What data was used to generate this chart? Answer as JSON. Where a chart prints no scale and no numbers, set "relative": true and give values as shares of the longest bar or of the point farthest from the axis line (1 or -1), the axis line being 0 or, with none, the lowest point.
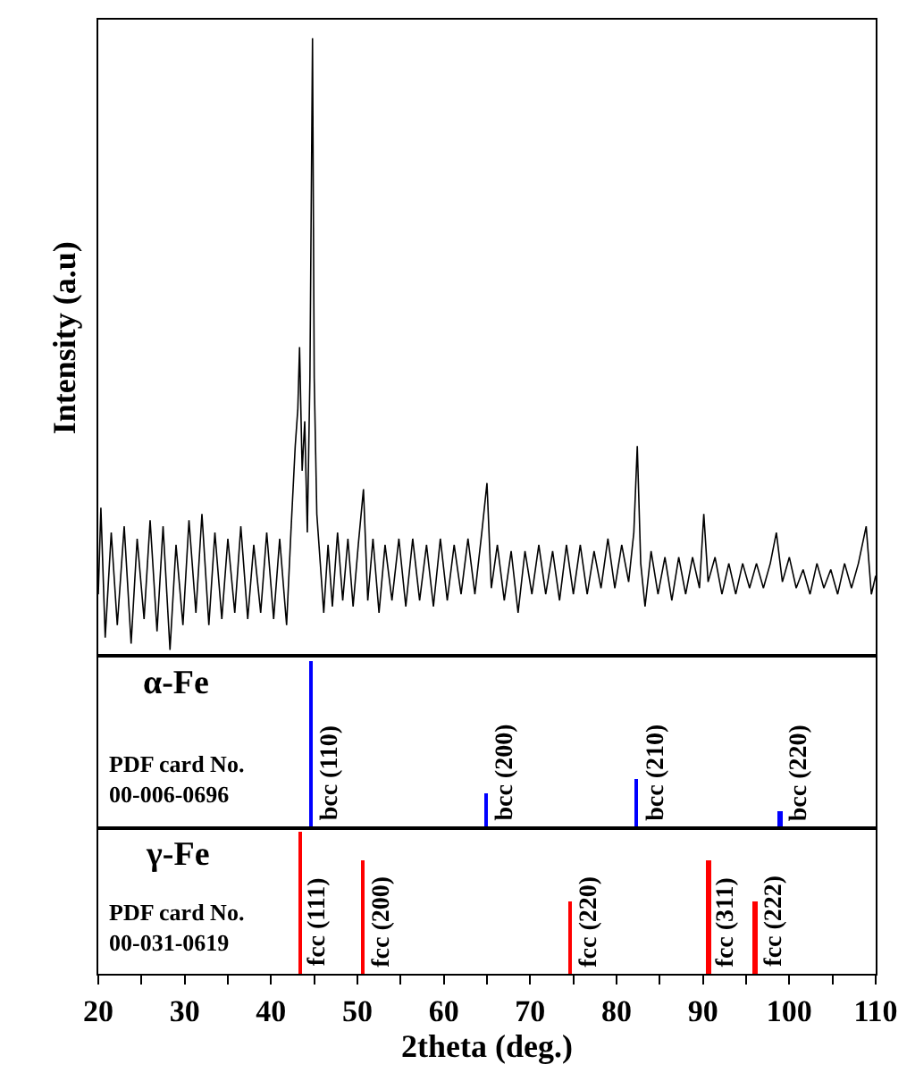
{
  "chart_data": [
    {
      "type": "line",
      "relative": true,
      "ylabel": "Intensity (a.u)",
      "xlim": [
        20,
        110
      ],
      "tick_labels": false,
      "grid": false,
      "marker": "none",
      "line_style": "solid",
      "series": [
        {
          "color": "#000000",
          "x": [
            20,
            20.3,
            20.8,
            21.5,
            22.2,
            23,
            23.8,
            24.5,
            25.3,
            26,
            26.8,
            27.5,
            28.3,
            29,
            29.8,
            30.5,
            31.3,
            32,
            32.8,
            33.5,
            34.3,
            35,
            35.8,
            36.5,
            37.3,
            38,
            38.8,
            39.5,
            40.3,
            41,
            41.8,
            42.3,
            42.8,
            43.1,
            43.3,
            43.6,
            43.9,
            44.2,
            44.5,
            44.8,
            45.0,
            45.3,
            45.7,
            46.1,
            46.6,
            47.1,
            47.7,
            48.3,
            48.9,
            49.5,
            50.1,
            50.7,
            51.2,
            51.8,
            52.5,
            53.2,
            54,
            54.8,
            55.6,
            56.4,
            57.2,
            58,
            58.8,
            59.6,
            60.4,
            61.2,
            62,
            62.8,
            63.6,
            64.4,
            65.0,
            65.5,
            66.2,
            67,
            67.8,
            68.6,
            69.4,
            70.2,
            71,
            71.8,
            72.6,
            73.4,
            74.2,
            75,
            75.8,
            76.6,
            77.4,
            78.2,
            79,
            79.8,
            80.6,
            81.4,
            82.0,
            82.4,
            82.8,
            83.3,
            84,
            84.8,
            85.6,
            86.4,
            87.2,
            88,
            88.8,
            89.6,
            90.1,
            90.6,
            91.4,
            92.2,
            93,
            93.8,
            94.6,
            95.4,
            96.2,
            97,
            97.8,
            98.5,
            99.2,
            100,
            100.8,
            101.6,
            102.4,
            103.2,
            104,
            104.8,
            105.6,
            106.4,
            107.2,
            108,
            108.9,
            109.5,
            110
          ],
          "values": [
            0.1,
            0.24,
            0.03,
            0.2,
            0.05,
            0.21,
            0.02,
            0.19,
            0.06,
            0.22,
            0.04,
            0.21,
            0.01,
            0.18,
            0.05,
            0.22,
            0.07,
            0.23,
            0.05,
            0.2,
            0.06,
            0.19,
            0.07,
            0.21,
            0.06,
            0.18,
            0.07,
            0.2,
            0.06,
            0.19,
            0.05,
            0.2,
            0.34,
            0.4,
            0.5,
            0.3,
            0.38,
            0.2,
            0.45,
            1.0,
            0.45,
            0.23,
            0.15,
            0.07,
            0.18,
            0.08,
            0.2,
            0.09,
            0.19,
            0.08,
            0.18,
            0.27,
            0.09,
            0.19,
            0.07,
            0.18,
            0.09,
            0.19,
            0.08,
            0.19,
            0.09,
            0.18,
            0.08,
            0.19,
            0.09,
            0.18,
            0.1,
            0.19,
            0.1,
            0.2,
            0.28,
            0.11,
            0.18,
            0.09,
            0.17,
            0.07,
            0.17,
            0.1,
            0.18,
            0.1,
            0.17,
            0.09,
            0.18,
            0.1,
            0.18,
            0.1,
            0.17,
            0.11,
            0.19,
            0.11,
            0.18,
            0.12,
            0.2,
            0.34,
            0.15,
            0.08,
            0.17,
            0.1,
            0.16,
            0.09,
            0.16,
            0.1,
            0.16,
            0.11,
            0.23,
            0.12,
            0.16,
            0.1,
            0.15,
            0.1,
            0.15,
            0.11,
            0.15,
            0.11,
            0.15,
            0.2,
            0.12,
            0.16,
            0.11,
            0.14,
            0.1,
            0.15,
            0.11,
            0.14,
            0.1,
            0.15,
            0.11,
            0.15,
            0.21,
            0.1,
            0.13
          ]
        }
      ]
    },
    {
      "type": "bar",
      "relative": true,
      "xlim": [
        20,
        110
      ],
      "tick_labels": false,
      "grid": false,
      "annotations": [
        "α-Fe",
        "PDF card No.\n00-006-0696",
        {
          "text": "bcc (110)",
          "x": 44.7,
          "y": 0
        },
        {
          "text": "bcc (200)",
          "x": 65.0,
          "y": 0
        },
        {
          "text": "bcc (210)",
          "x": 82.4,
          "y": 0
        },
        {
          "text": "bcc (220)",
          "x": 99.0,
          "y": 0
        }
      ],
      "series": [
        {
          "color": "#0000ff",
          "x": [
            44.7,
            65.0,
            82.4,
            99.0
          ],
          "values": [
            1,
            0.2,
            0.29,
            0.1
          ]
        }
      ]
    },
    {
      "type": "bar",
      "relative": true,
      "xlim": [
        20,
        110
      ],
      "tick_labels": "x",
      "xlabel": "2theta (deg.)",
      "grid": false,
      "xticks": [
        20,
        {
          "value": 25,
          "label": null
        },
        30,
        {
          "value": 35,
          "label": null
        },
        40,
        {
          "value": 45,
          "label": null
        },
        50,
        {
          "value": 55,
          "label": null
        },
        60,
        {
          "value": 65,
          "label": null
        },
        70,
        {
          "value": 75,
          "label": null
        },
        80,
        {
          "value": 85,
          "label": null
        },
        90,
        {
          "value": 95,
          "label": null
        },
        100,
        {
          "value": 105,
          "label": null
        },
        110
      ],
      "annotations": [
        "γ-Fe",
        "PDF card No.\n00-031-0619",
        {
          "text": "fcc (111)",
          "x": 43.4,
          "y": 0
        },
        {
          "text": "fcc (200)",
          "x": 50.7,
          "y": 0
        },
        {
          "text": "fcc (220)",
          "x": 74.7,
          "y": 0
        },
        {
          "text": "fcc (311)",
          "x": 90.7,
          "y": 0
        },
        {
          "text": "fcc (222)",
          "x": 96.1,
          "y": 0
        }
      ],
      "series": [
        {
          "color": "#ff0000",
          "x": [
            43.4,
            50.7,
            74.7,
            90.7,
            96.1
          ],
          "values": [
            1,
            0.8,
            0.51,
            0.8,
            0.51
          ]
        }
      ]
    }
  ]
}
